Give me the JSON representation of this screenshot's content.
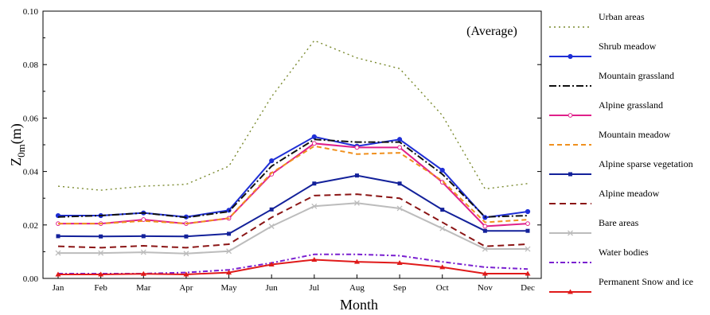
{
  "chart_data": {
    "type": "line",
    "annotation": "(Average)",
    "xlabel": "Month",
    "ylabel_main": "Z",
    "ylabel_sub": "0m",
    "ylabel_unit": "(m)",
    "categories": [
      "Jan",
      "Feb",
      "Mar",
      "Apr",
      "May",
      "Jun",
      "Jul",
      "Aug",
      "Sep",
      "Oct",
      "Nov",
      "Dec"
    ],
    "ylim": [
      0,
      0.1
    ],
    "yticks": [
      "0.00",
      "0.02",
      "0.04",
      "0.06",
      "0.08",
      "0.10"
    ],
    "grid": false,
    "legend_position": "right, outside plot",
    "series": [
      {
        "name": "Urban areas",
        "color": "#7a8a2e",
        "dash": "2,4",
        "marker": "none",
        "values": [
          0.0345,
          0.033,
          0.0345,
          0.0352,
          0.042,
          0.068,
          0.089,
          0.0825,
          0.0785,
          0.061,
          0.0335,
          0.0355
        ]
      },
      {
        "name": "Shrub meadow",
        "color": "#1f2fd6",
        "dash": "",
        "marker": "circle-filled",
        "values": [
          0.0235,
          0.0235,
          0.0245,
          0.023,
          0.0255,
          0.044,
          0.053,
          0.0495,
          0.052,
          0.0405,
          0.0228,
          0.025
        ]
      },
      {
        "name": "Mountain grassland",
        "color": "#111111",
        "dash": "9,3,2,3",
        "marker": "none",
        "values": [
          0.023,
          0.0235,
          0.0245,
          0.0228,
          0.025,
          0.042,
          0.052,
          0.051,
          0.051,
          0.039,
          0.023,
          0.0235
        ]
      },
      {
        "name": "Alpine grassland",
        "color": "#e0208a",
        "dash": "",
        "marker": "circle-open",
        "values": [
          0.0205,
          0.0205,
          0.022,
          0.0205,
          0.0225,
          0.039,
          0.0505,
          0.049,
          0.049,
          0.036,
          0.0195,
          0.0205
        ]
      },
      {
        "name": "Mountain meadow",
        "color": "#f0901e",
        "dash": "6,4",
        "marker": "none",
        "values": [
          0.0205,
          0.0205,
          0.0215,
          0.0205,
          0.0225,
          0.0395,
          0.0495,
          0.0465,
          0.047,
          0.0365,
          0.021,
          0.022
        ]
      },
      {
        "name": "Alpine sparse vegetation",
        "color": "#13219a",
        "dash": "",
        "marker": "square-filled",
        "values": [
          0.0158,
          0.0157,
          0.0158,
          0.0157,
          0.0167,
          0.0258,
          0.0355,
          0.0385,
          0.0355,
          0.0257,
          0.0178,
          0.0178
        ]
      },
      {
        "name": "Alpine meadow",
        "color": "#8b1515",
        "dash": "8,5",
        "marker": "none",
        "values": [
          0.012,
          0.0115,
          0.0122,
          0.0115,
          0.0128,
          0.0228,
          0.031,
          0.0315,
          0.03,
          0.021,
          0.012,
          0.0128
        ]
      },
      {
        "name": "Bare areas",
        "color": "#bcbcbc",
        "dash": "",
        "marker": "x",
        "values": [
          0.0095,
          0.0095,
          0.0098,
          0.0093,
          0.0102,
          0.0195,
          0.027,
          0.0282,
          0.0262,
          0.0187,
          0.011,
          0.011
        ]
      },
      {
        "name": "Water bodies",
        "color": "#7a20d0",
        "dash": "6,3,2,3",
        "marker": "none",
        "values": [
          0.0018,
          0.0018,
          0.0018,
          0.0022,
          0.0032,
          0.0058,
          0.009,
          0.009,
          0.0085,
          0.0062,
          0.0042,
          0.0035
        ]
      },
      {
        "name": "Permanent Snow and ice",
        "color": "#e01a1a",
        "dash": "",
        "marker": "triangle",
        "values": [
          0.0015,
          0.0015,
          0.0017,
          0.0015,
          0.0022,
          0.0052,
          0.007,
          0.0062,
          0.0058,
          0.0042,
          0.0018,
          0.0018
        ]
      }
    ]
  }
}
